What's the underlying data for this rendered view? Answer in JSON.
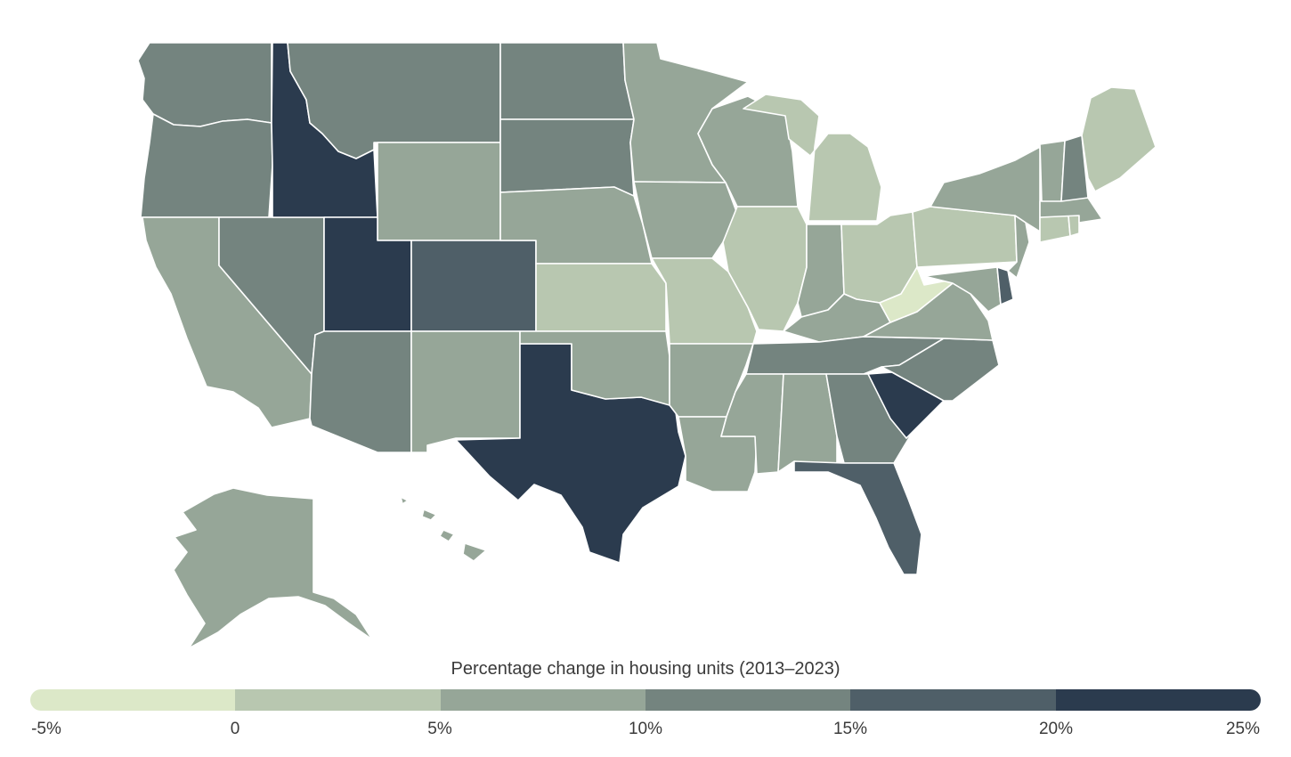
{
  "legend": {
    "title": "Percentage change in housing units (2013–2023)",
    "bins": [
      {
        "range": "-5% to 0",
        "color": "#dce8c8"
      },
      {
        "range": "0 to 5%",
        "color": "#b8c7b0"
      },
      {
        "range": "5% to 10%",
        "color": "#96a698"
      },
      {
        "range": "10% to 15%",
        "color": "#74847f"
      },
      {
        "range": "15% to 20%",
        "color": "#4f5f68"
      },
      {
        "range": "20% to 25%",
        "color": "#2b3b4e"
      }
    ],
    "ticks": [
      "-5%",
      "0",
      "5%",
      "10%",
      "15%",
      "20%",
      "25%"
    ]
  },
  "states": {
    "WA": 3,
    "OR": 3,
    "CA": 2,
    "NV": 3,
    "ID": 5,
    "MT": 3,
    "WY": 2,
    "UT": 5,
    "CO": 4,
    "AZ": 3,
    "NM": 2,
    "TX": 5,
    "ND": 3,
    "SD": 3,
    "NE": 2,
    "KS": 1,
    "OK": 2,
    "MN": 2,
    "IA": 2,
    "MO": 1,
    "AR": 2,
    "LA": 2,
    "WI": 2,
    "IL": 1,
    "MI": 1,
    "IN": 2,
    "OH": 1,
    "KY": 2,
    "TN": 3,
    "MS": 2,
    "AL": 2,
    "GA": 3,
    "FL": 4,
    "SC": 5,
    "NC": 3,
    "VA": 2,
    "WV": 0,
    "PA": 1,
    "NY": 2,
    "ME": 1,
    "NH": 3,
    "VT": 2,
    "MA": 2,
    "CT": 1,
    "RI": 1,
    "NJ": 2,
    "DE": 4,
    "MD": 2,
    "AK": 2,
    "HI": 2
  }
}
